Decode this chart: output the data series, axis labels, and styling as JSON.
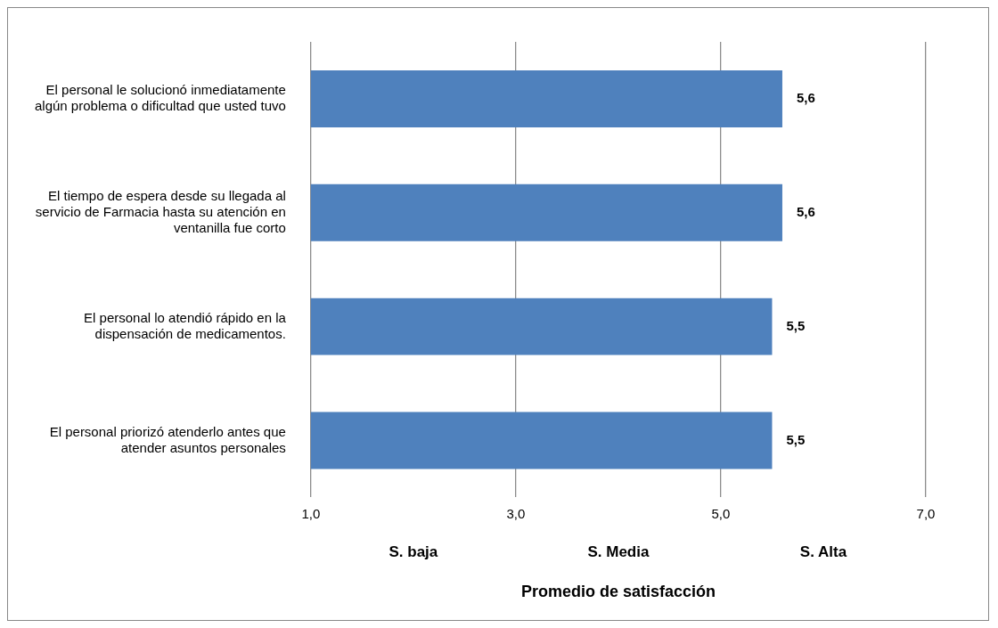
{
  "chart_data": {
    "type": "bar",
    "orientation": "horizontal",
    "categories": [
      "El personal le solucionó inmediatamente algún problema o dificultad que usted tuvo",
      "El tiempo de espera desde su llegada al servicio de Farmacia hasta su atención en ventanilla fue corto",
      "El personal lo atendió rápido en la dispensación de medicamentos.",
      "El personal priorizó atenderlo antes que atender asuntos personales"
    ],
    "values": [
      5.6,
      5.6,
      5.5,
      5.5
    ],
    "value_labels": [
      "5,6",
      "5,6",
      "5,5",
      "5,5"
    ],
    "color": "#4f81bd",
    "xlim": [
      1,
      7
    ],
    "xticks": [
      {
        "value": 1,
        "label": "1,0"
      },
      {
        "value": 3,
        "label": "3,0"
      },
      {
        "value": 5,
        "label": "5,0"
      },
      {
        "value": 7,
        "label": "7,0"
      }
    ],
    "xlabel": "Promedio de satisfacción",
    "annotations": [
      "S. baja",
      "S. Media",
      "S. Alta"
    ],
    "grid": "x",
    "legend": false
  }
}
